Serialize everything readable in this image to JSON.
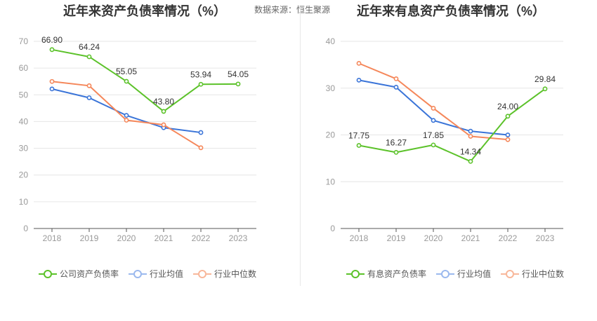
{
  "header": {
    "title_left": "近年来资产负债率情况（%）",
    "source": "数据来源：恒生聚源",
    "title_right": "近年来有息资产负债率情况（%）"
  },
  "colors": {
    "company": "#5cc22a",
    "avg": "#3a74d8",
    "median": "#f5875a",
    "grid": "#e6e6e6",
    "axis": "#555555",
    "tick": "#999999"
  },
  "chart_data": [
    {
      "type": "line",
      "title": "近年来资产负债率情况（%）",
      "categories": [
        "2018",
        "2019",
        "2020",
        "2021",
        "2022",
        "2023"
      ],
      "ylim": [
        0,
        70
      ],
      "yticks": [
        0,
        10,
        20,
        30,
        40,
        50,
        60,
        70
      ],
      "grid": true,
      "legend_position": "bottom",
      "series": [
        {
          "name": "公司资产负债率",
          "key": "company",
          "values": [
            66.9,
            64.24,
            55.05,
            43.8,
            53.94,
            54.05
          ],
          "labels": [
            "66.90",
            "64.24",
            "55.05",
            "43.80",
            "53.94",
            "54.05"
          ]
        },
        {
          "name": "行业均值",
          "key": "avg",
          "values": [
            52.2,
            48.9,
            42.3,
            37.7,
            35.9,
            null
          ]
        },
        {
          "name": "行业中位数",
          "key": "median",
          "values": [
            55.0,
            53.4,
            40.5,
            38.8,
            30.2,
            null
          ]
        }
      ]
    },
    {
      "type": "line",
      "title": "近年来有息资产负债率情况（%）",
      "categories": [
        "2018",
        "2019",
        "2020",
        "2021",
        "2022",
        "2023"
      ],
      "ylim": [
        0,
        40
      ],
      "yticks": [
        0,
        10,
        20,
        30,
        40
      ],
      "grid": true,
      "legend_position": "bottom",
      "series": [
        {
          "name": "有息资产负债率",
          "key": "company",
          "values": [
            17.75,
            16.27,
            17.85,
            14.34,
            24.0,
            29.84
          ],
          "labels": [
            "17.75",
            "16.27",
            "17.85",
            "14.34",
            "24.00",
            "29.84"
          ]
        },
        {
          "name": "行业均值",
          "key": "avg",
          "values": [
            31.7,
            30.2,
            23.1,
            20.8,
            20.0,
            null
          ]
        },
        {
          "name": "行业中位数",
          "key": "median",
          "values": [
            35.3,
            32.0,
            25.7,
            19.7,
            19.0,
            null
          ]
        }
      ]
    }
  ]
}
